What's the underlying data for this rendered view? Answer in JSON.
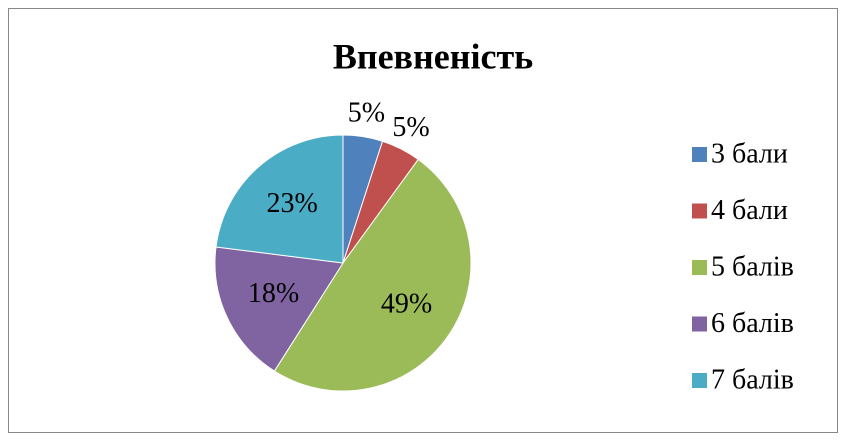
{
  "chart_data": {
    "type": "pie",
    "title": "Впевненість",
    "categories": [
      "3 бали",
      "4 бали",
      "5 балів",
      "6 балів",
      "7 балів"
    ],
    "values": [
      5,
      5,
      49,
      18,
      23
    ],
    "value_labels": [
      "5%",
      "5%",
      "49%",
      "18%",
      "23%"
    ],
    "colors": [
      "#4f81bd",
      "#c0504d",
      "#9bbb59",
      "#8064a2",
      "#4bacc6"
    ],
    "legend": "right"
  }
}
